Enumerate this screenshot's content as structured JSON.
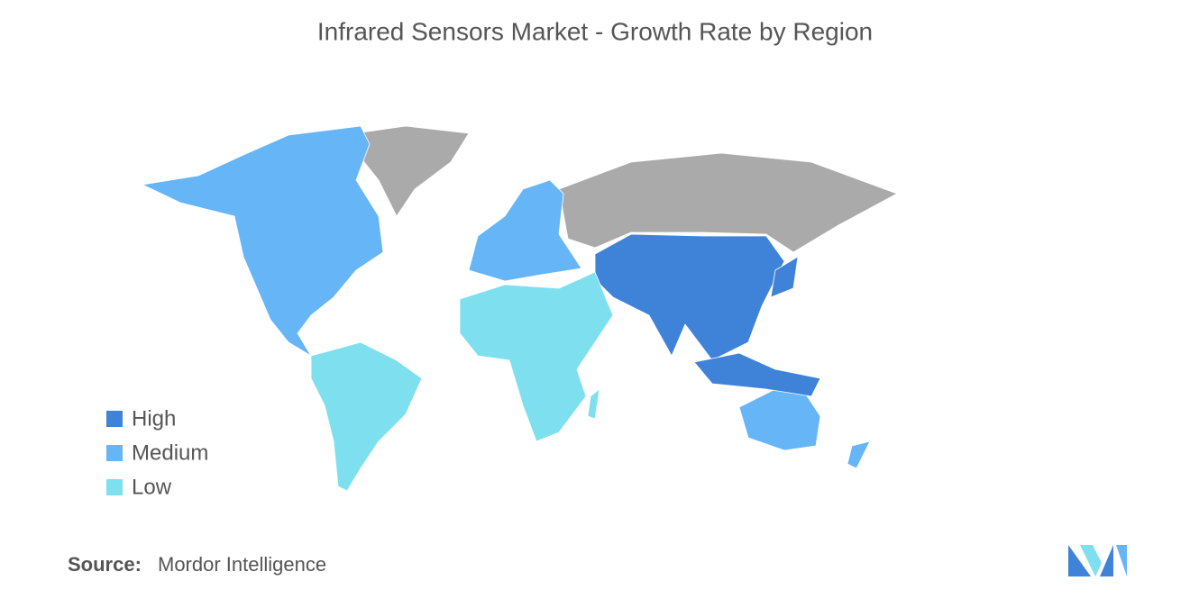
{
  "title": "Infrared Sensors Market - Growth Rate by Region",
  "legend": [
    {
      "label": "High",
      "color": "#3f83d9"
    },
    {
      "label": "Medium",
      "color": "#66b5f7"
    },
    {
      "label": "Low",
      "color": "#7ee0ef"
    }
  ],
  "source": {
    "label": "Source:",
    "text": "Mordor Intelligence"
  }
}
